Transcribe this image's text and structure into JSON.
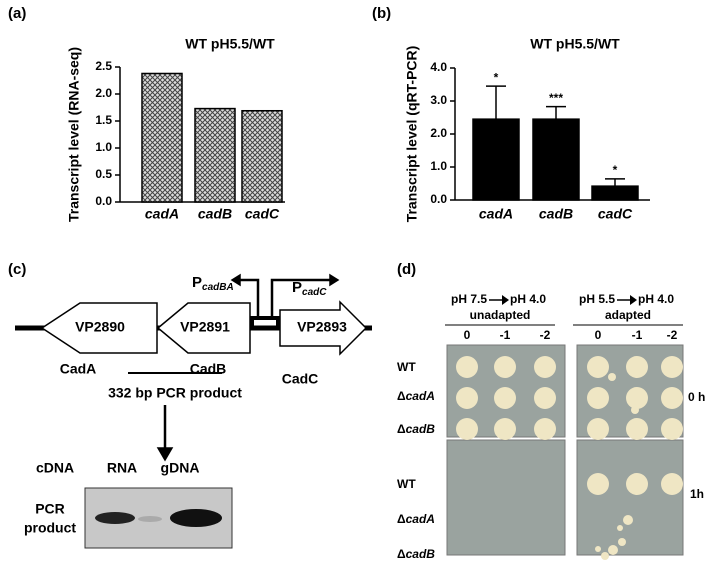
{
  "chart_data": [
    {
      "type": "bar",
      "panel": "(a)",
      "title": "WT pH5.5/WT",
      "y_label": "Transcript level (RNA-seq)",
      "categories": [
        "cadA",
        "cadB",
        "cadC"
      ],
      "values": [
        2.38,
        1.73,
        1.69
      ],
      "color": "#555555",
      "ylim": [
        0,
        2.5
      ],
      "yticks": [
        {
          "value": 0,
          "label": "0.0"
        },
        0.5,
        {
          "value": 1,
          "label": "1.0"
        },
        1.5,
        {
          "value": 2,
          "label": "2.0"
        },
        2.5
      ]
    },
    {
      "type": "bar",
      "panel": "(b)",
      "title": "WT pH5.5/WT",
      "y_label": "Transcript level (qRT-PCR)",
      "categories": [
        "cadA",
        "cadB",
        "cadC"
      ],
      "values": [
        2.45,
        2.45,
        0.42
      ],
      "errors": [
        1.0,
        0.38,
        0.22
      ],
      "significance": [
        "*",
        "***",
        "*"
      ],
      "color": "#000000",
      "ylim": [
        0,
        4
      ],
      "yticks": [
        {
          "value": 0,
          "label": "0.0"
        },
        {
          "value": 1,
          "label": "1.0"
        },
        {
          "value": 2,
          "label": "2.0"
        },
        {
          "value": 3,
          "label": "3.0"
        },
        {
          "value": 4,
          "label": "4.0"
        }
      ]
    }
  ],
  "diagram": {
    "panel": "(c)",
    "genes": [
      {
        "id": "VP2890",
        "name": "CadA"
      },
      {
        "id": "VP2891",
        "name": "CadB"
      },
      {
        "id": "VP2893",
        "name": "CadC"
      }
    ],
    "promoters": [
      {
        "letter": "P",
        "subscript": "cadBA"
      },
      {
        "letter": "P",
        "subscript": "cadC"
      }
    ],
    "pcr_label": "332 bp PCR  product",
    "gel_lanes": [
      "cDNA",
      "RNA",
      "gDNA"
    ],
    "gel_label": [
      "PCR",
      "product"
    ]
  },
  "plates": {
    "panel": "(d)",
    "conditions": [
      {
        "from": "pH 7.5",
        "to": "pH 4.0",
        "label": "unadapted"
      },
      {
        "from": "pH 5.5",
        "to": "pH 4.0",
        "label": "adapted"
      }
    ],
    "dilutions": [
      "0",
      "-1",
      "-2"
    ],
    "strains": [
      {
        "prefix": "",
        "gene": "WT"
      },
      {
        "prefix": "Δ",
        "gene": "cadA"
      },
      {
        "prefix": "Δ",
        "gene": "cadB"
      }
    ],
    "times": [
      "0 h",
      "1h"
    ]
  }
}
